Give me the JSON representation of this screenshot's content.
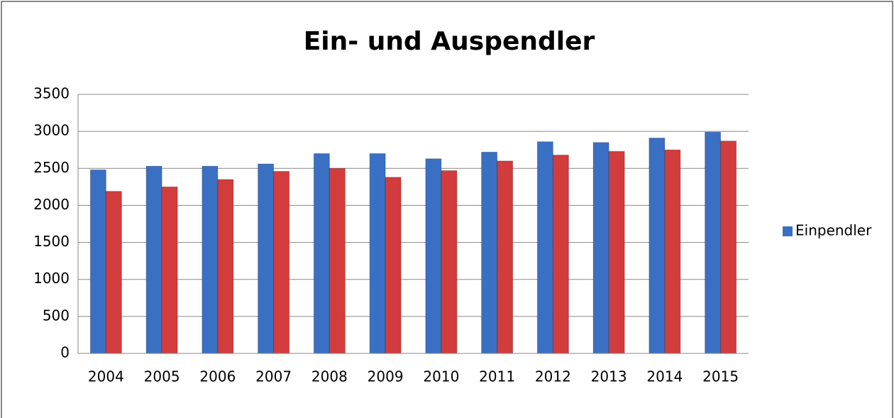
{
  "chart_data": {
    "type": "bar",
    "title": "Ein- und Auspendler",
    "categories": [
      "2004",
      "2005",
      "2006",
      "2007",
      "2008",
      "2009",
      "2010",
      "2011",
      "2012",
      "2013",
      "2014",
      "2015"
    ],
    "series": [
      {
        "name": "Einpendler",
        "color": "#3a70c4",
        "values": [
          2480,
          2530,
          2530,
          2560,
          2700,
          2700,
          2630,
          2720,
          2860,
          2850,
          2910,
          2990
        ]
      },
      {
        "color": "#d23c3c",
        "values": [
          2190,
          2250,
          2350,
          2460,
          2500,
          2380,
          2470,
          2600,
          2680,
          2730,
          2750,
          2870
        ]
      }
    ],
    "ylim": [
      0,
      3500
    ],
    "yticks": [
      0,
      500,
      1000,
      1500,
      2000,
      2500,
      3000,
      3500
    ],
    "grid": true,
    "legend": "right"
  }
}
